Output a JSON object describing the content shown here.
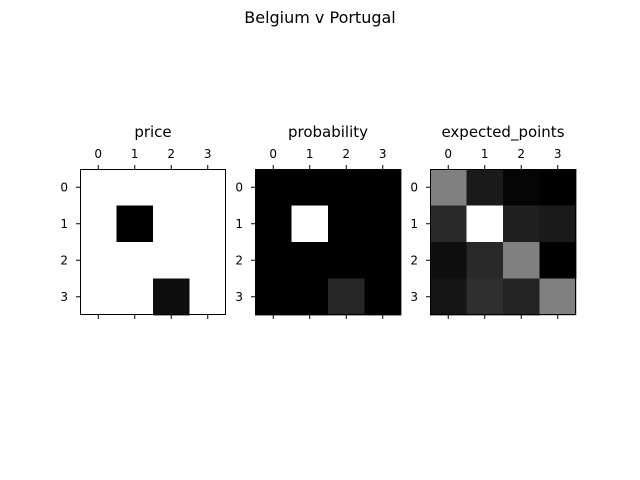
{
  "figure": {
    "suptitle": "Belgium v Portugal"
  },
  "chart_data": [
    {
      "type": "heatmap",
      "title": "price",
      "colormap": "gray",
      "x_ticks": [
        "0",
        "1",
        "2",
        "3"
      ],
      "y_ticks": [
        "0",
        "1",
        "2",
        "3"
      ],
      "show_top_xticks": true,
      "show_bottom_tick_marks": true,
      "values": [
        [
          1.0,
          1.0,
          1.0,
          1.0
        ],
        [
          1.0,
          0.0,
          1.0,
          1.0
        ],
        [
          1.0,
          1.0,
          1.0,
          1.0
        ],
        [
          1.0,
          1.0,
          0.05,
          1.0
        ]
      ]
    },
    {
      "type": "heatmap",
      "title": "probability",
      "colormap": "gray",
      "x_ticks": [
        "0",
        "1",
        "2",
        "3"
      ],
      "y_ticks": [
        "0",
        "1",
        "2",
        "3"
      ],
      "show_top_xticks": true,
      "show_bottom_tick_marks": true,
      "values": [
        [
          0.0,
          0.0,
          0.0,
          0.0
        ],
        [
          0.0,
          1.0,
          0.0,
          0.0
        ],
        [
          0.0,
          0.0,
          0.0,
          0.0
        ],
        [
          0.0,
          0.0,
          0.15,
          0.0
        ]
      ]
    },
    {
      "type": "heatmap",
      "title": "expected_points",
      "colormap": "gray",
      "x_ticks": [
        "0",
        "1",
        "2",
        "3"
      ],
      "y_ticks": [
        "0",
        "1",
        "2",
        "3"
      ],
      "show_top_xticks": true,
      "show_bottom_tick_marks": true,
      "values": [
        [
          0.5,
          0.1,
          0.02,
          0.0
        ],
        [
          0.16,
          1.0,
          0.12,
          0.1
        ],
        [
          0.06,
          0.16,
          0.5,
          0.0
        ],
        [
          0.08,
          0.18,
          0.14,
          0.5
        ]
      ]
    }
  ]
}
